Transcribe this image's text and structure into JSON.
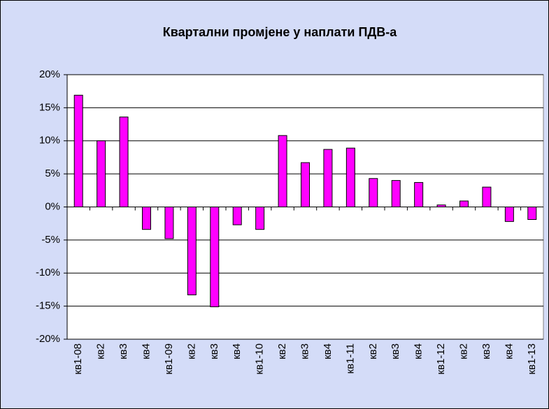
{
  "chart_data": {
    "type": "bar",
    "title": "Квартални промјене у наплати ПДВ-а",
    "categories": [
      "кв1-08",
      "кв2",
      "кв3",
      "кв4",
      "кв1-09",
      "кв2",
      "кв3",
      "кв4",
      "кв1-10",
      "кв2",
      "кв3",
      "кв4",
      "кв1-11",
      "кв2",
      "кв3",
      "кв4",
      "кв1-12",
      "кв2",
      "кв3",
      "кв4",
      "кв1-13"
    ],
    "values": [
      16.9,
      10.0,
      13.6,
      -3.4,
      -4.8,
      -13.3,
      -15.1,
      -2.7,
      -3.4,
      10.8,
      6.7,
      8.7,
      8.9,
      4.3,
      4.0,
      3.7,
      0.3,
      0.9,
      3.0,
      -2.2,
      -1.9
    ],
    "color": "#ff00ff",
    "ylim": [
      -20,
      20
    ],
    "yticks": [
      {
        "value": -20,
        "label": "-20%"
      },
      {
        "value": -15,
        "label": "-15%"
      },
      {
        "value": -10,
        "label": "-10%"
      },
      {
        "value": -5,
        "label": "-5%"
      },
      {
        "value": 0,
        "label": "0%"
      },
      {
        "value": 5,
        "label": "5%"
      },
      {
        "value": 10,
        "label": "10%"
      },
      {
        "value": 15,
        "label": "15%"
      },
      {
        "value": 20,
        "label": "20%"
      }
    ],
    "grid": true
  }
}
